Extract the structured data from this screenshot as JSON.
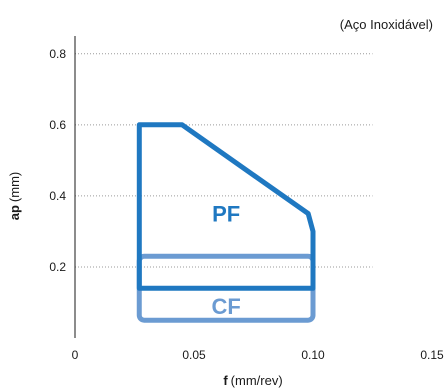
{
  "chart_data": {
    "type": "area",
    "subtitle": "(Aço Inoxidável)",
    "xlabel": {
      "symbol": "f",
      "unit": "(mm/rev)"
    },
    "ylabel": {
      "symbol": "ap",
      "unit": "(mm)"
    },
    "xlim": [
      0,
      0.15
    ],
    "ylim": [
      0,
      0.85
    ],
    "x_ticks": [
      0,
      0.05,
      0.1,
      0.15
    ],
    "x_tick_labels": [
      "0",
      "0.05",
      "0.10",
      "0.15"
    ],
    "y_ticks": [
      0.2,
      0.4,
      0.6,
      0.8
    ],
    "y_tick_labels": [
      "0.2",
      "0.4",
      "0.6",
      "0.8"
    ],
    "grid": "horizontal-dotted",
    "regions": [
      {
        "name": "CF",
        "color": "#6b9bd2",
        "x": [
          0.027,
          0.1
        ],
        "y": [
          0.05,
          0.23
        ]
      },
      {
        "name": "PF",
        "color": "#1f78c1",
        "polygon": [
          [
            0.027,
            0.14
          ],
          [
            0.027,
            0.6
          ],
          [
            0.045,
            0.6
          ],
          [
            0.098,
            0.35
          ],
          [
            0.1,
            0.3
          ],
          [
            0.1,
            0.14
          ]
        ]
      }
    ]
  }
}
